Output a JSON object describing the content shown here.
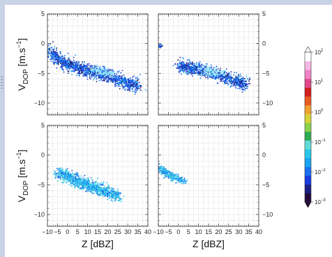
{
  "chart_data": {
    "type": "heatmap",
    "panels": [
      {
        "id": "top-left",
        "clusters": [
          {
            "points": [
              [
                -10,
                -0.8
              ],
              [
                -5,
                -2.6
              ],
              [
                0,
                -3.4
              ],
              [
                5,
                -4.0
              ],
              [
                10,
                -4.4
              ],
              [
                15,
                -4.8
              ],
              [
                20,
                -5.3
              ],
              [
                25,
                -5.9
              ],
              [
                30,
                -6.6
              ],
              [
                35,
                -7.1
              ]
            ],
            "spread": 1.0,
            "n": 1400
          }
        ],
        "core": [
          [
            15,
            -4.5
          ],
          [
            20,
            -5.0
          ]
        ],
        "ylabel": true,
        "xlabels": false,
        "right_ticks": false
      },
      {
        "id": "top-right",
        "clusters": [
          {
            "points": [
              [
                0,
                -3.6
              ],
              [
                5,
                -4.0
              ],
              [
                10,
                -4.3
              ],
              [
                15,
                -4.7
              ],
              [
                20,
                -5.2
              ],
              [
                25,
                -5.8
              ],
              [
                30,
                -6.3
              ],
              [
                33,
                -6.8
              ]
            ],
            "spread": 0.9,
            "n": 1000
          },
          {
            "points": [
              [
                -10,
                -0.3
              ],
              [
                -9,
                -0.5
              ]
            ],
            "spread": 0.35,
            "n": 16
          }
        ],
        "core": [
          [
            15,
            -4.4
          ],
          [
            18,
            -4.8
          ]
        ],
        "ylabel": false,
        "xlabels": false,
        "right_ticks": true
      },
      {
        "id": "bottom-left",
        "clusters": [
          {
            "points": [
              [
                -5,
                -2.9
              ],
              [
                0,
                -3.6
              ],
              [
                5,
                -4.4
              ],
              [
                10,
                -5.0
              ],
              [
                15,
                -5.6
              ],
              [
                20,
                -6.2
              ],
              [
                25,
                -6.9
              ]
            ],
            "spread": 0.9,
            "n": 1100
          }
        ],
        "core": [],
        "ylabel": true,
        "xlabels": true,
        "right_ticks": false
      },
      {
        "id": "bottom-right",
        "clusters": [
          {
            "points": [
              [
                -10,
                -2.0
              ],
              [
                -7,
                -2.8
              ],
              [
                -4,
                -3.4
              ],
              [
                -1,
                -3.9
              ],
              [
                3,
                -4.3
              ]
            ],
            "spread": 0.55,
            "n": 340
          }
        ],
        "core": [],
        "ylabel": false,
        "xlabels": true,
        "right_ticks": true
      }
    ],
    "x_range": [
      -10,
      40
    ],
    "y_range": [
      -12,
      5
    ],
    "x_ticks": [
      -10,
      -5,
      0,
      5,
      10,
      15,
      20,
      25,
      30,
      35,
      40
    ],
    "x_tick_labels": [
      "−10",
      "−5",
      "0",
      "5",
      "10",
      "15",
      "20",
      "25",
      "30",
      "35",
      "40"
    ],
    "x_tick_labels_last_panel": [
      "−10",
      "−5",
      "0",
      "5",
      "10",
      "15",
      "20",
      "25",
      "30",
      "35",
      "40"
    ],
    "y_ticks": [
      5,
      0,
      -5,
      -10
    ],
    "y_tick_labels": [
      "5",
      "0",
      "−5",
      "−10"
    ],
    "xlabel": "Z [dBZ]",
    "ylabel": {
      "main": "V",
      "sub": "DOP",
      "unit": " [m.s",
      "exp": "−1",
      "close": "]"
    },
    "colorbar": {
      "scale": "log",
      "range": [
        0.001,
        100
      ],
      "tick_values": [
        100,
        10,
        1,
        0.1,
        0.01,
        0.001
      ],
      "tick_labels": [
        {
          "base": "10",
          "exp": "2"
        },
        {
          "base": "10",
          "exp": "1"
        },
        {
          "base": "10",
          "exp": "0"
        },
        {
          "base": "10",
          "exp": "−1"
        },
        {
          "base": "10",
          "exp": "−2"
        },
        {
          "base": "10",
          "exp": "−3"
        }
      ],
      "colors": [
        "#240a3a",
        "#1a1f85",
        "#1b3be0",
        "#1a70f0",
        "#19a3f2",
        "#2ac6ea",
        "#5fdcd8",
        "#2faa54",
        "#8ad34a",
        "#d8d13a",
        "#f0a030",
        "#e85a25",
        "#d41e1e",
        "#e04a8c",
        "#ee82c6",
        "#f6b8e2",
        "#ffffff"
      ]
    },
    "grid": true,
    "title": ""
  }
}
